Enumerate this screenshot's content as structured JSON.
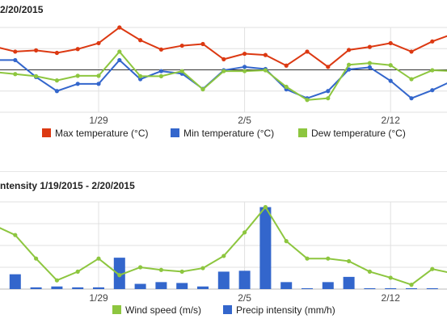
{
  "charts_text": {
    "top_title": "2/20/2015",
    "bottom_title": "ntensity 1/19/2015 - 2/20/2015"
  },
  "chart_data": [
    {
      "type": "line",
      "title": "2/20/2015",
      "x_tick_labels": [
        "1/29",
        "2/5",
        "2/12"
      ],
      "x": [
        "1/24",
        "1/25",
        "1/26",
        "1/27",
        "1/28",
        "1/29",
        "1/30",
        "1/31",
        "2/1",
        "2/2",
        "2/3",
        "2/4",
        "2/5",
        "2/6",
        "2/7",
        "2/8",
        "2/9",
        "2/10",
        "2/11",
        "2/12",
        "2/13",
        "2/14",
        "2/15"
      ],
      "y_range": [
        -10,
        10
      ],
      "grid": true,
      "legend_position": "bottom",
      "colors": {
        "max": "#dc3912",
        "min": "#3366cc",
        "dew": "#8dc63f",
        "baseline": "#333333",
        "grid": "#e0e0e0"
      },
      "series": [
        {
          "name": "Max temperature (°C)",
          "values": [
            5.5,
            4.3,
            4.6,
            4.0,
            4.9,
            6.3,
            10.0,
            7.0,
            4.8,
            5.7,
            6.1,
            2.5,
            3.8,
            3.5,
            1.0,
            4.3,
            0.7,
            4.7,
            5.4,
            6.3,
            4.3,
            6.7,
            8.5
          ]
        },
        {
          "name": "Min temperature (°C)",
          "values": [
            2.3,
            2.3,
            -1.7,
            -5.0,
            -3.3,
            -3.3,
            2.3,
            -2.2,
            -0.3,
            -0.9,
            -4.5,
            -0.1,
            0.7,
            0.2,
            -4.6,
            -6.7,
            -5.0,
            0.1,
            0.6,
            -2.6,
            -6.7,
            -4.8,
            -2.5
          ]
        },
        {
          "name": "Dew temperature (°C)",
          "values": [
            -0.5,
            -1.0,
            -1.5,
            -2.5,
            -1.4,
            -1.4,
            4.3,
            -1.5,
            -1.5,
            -0.3,
            -4.6,
            -0.3,
            -0.3,
            -0.1,
            -4.0,
            -7.1,
            -6.7,
            1.2,
            1.6,
            1.1,
            -2.2,
            -0.1,
            -0.3
          ]
        }
      ]
    },
    {
      "type": "bar",
      "title": "ntensity 1/19/2015 - 2/20/2015",
      "x_tick_labels": [
        "1/29",
        "2/5",
        "2/12"
      ],
      "x": [
        "1/24",
        "1/25",
        "1/26",
        "1/27",
        "1/28",
        "1/29",
        "1/30",
        "1/31",
        "2/1",
        "2/2",
        "2/3",
        "2/4",
        "2/5",
        "2/6",
        "2/7",
        "2/8",
        "2/9",
        "2/10",
        "2/11",
        "2/12",
        "2/13",
        "2/14",
        "2/15"
      ],
      "y_range": [
        0,
        100
      ],
      "grid": true,
      "legend_position": "bottom",
      "colors": {
        "wind": "#8dc63f",
        "precip": "#3366cc",
        "grid": "#e0e0e0"
      },
      "series": [
        {
          "name": "Wind speed (m/s)",
          "type": "line",
          "values": [
            73,
            62,
            35,
            10,
            20,
            35,
            16,
            25,
            22,
            20,
            24,
            38,
            65,
            94,
            55,
            35,
            35,
            32,
            20,
            13,
            5,
            23,
            18
          ]
        },
        {
          "name": "Precip intensity (mm/h)",
          "type": "bar",
          "values": [
            27,
            17,
            2,
            3,
            2,
            2,
            36,
            6,
            8,
            7,
            3,
            20,
            21,
            94,
            8,
            1,
            8,
            14,
            1,
            1,
            1,
            1,
            0
          ]
        }
      ]
    }
  ],
  "legend": {
    "top": [
      "Max temperature (°C)",
      "Min temperature (°C)",
      "Dew temperature (°C)"
    ],
    "bottom": [
      "Wind speed (m/s)",
      "Precip intensity (mm/h)"
    ]
  }
}
